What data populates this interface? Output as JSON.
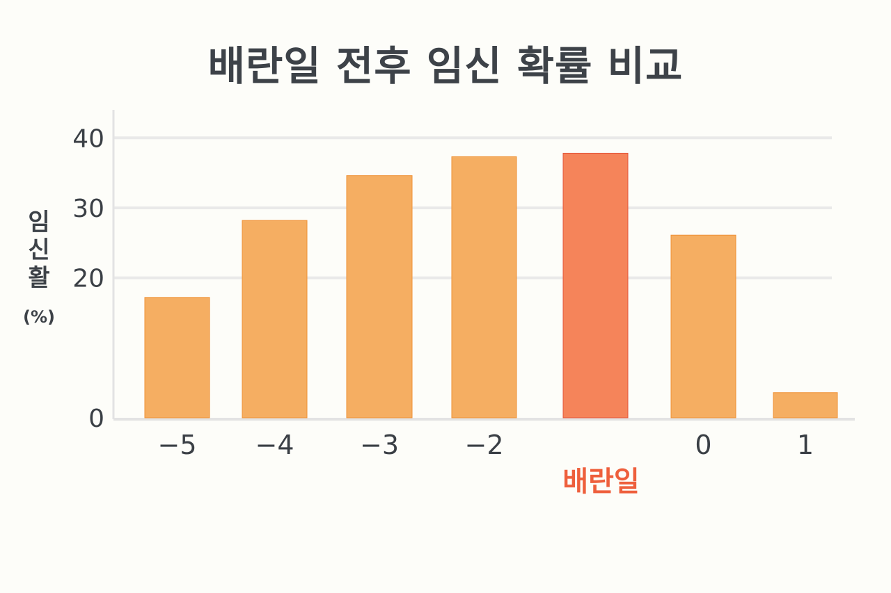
{
  "chart_data": {
    "type": "bar",
    "title": "배란일 전후 임신 확률 비교",
    "ylabel_chars": [
      "임",
      "신",
      "활"
    ],
    "ylabel_unit": "(%)",
    "categories": [
      "−5",
      "−4",
      "−3",
      "−2",
      "",
      "0",
      "1"
    ],
    "values": [
      17.2,
      28.2,
      34.6,
      37.3,
      37.8,
      26.1,
      3.6
    ],
    "highlight_index": 4,
    "highlight_label": "배란일",
    "ylim": [
      0,
      44
    ],
    "yticks": [
      0,
      20,
      30,
      40
    ],
    "grid": true,
    "colors": {
      "bar": "#f5ae62",
      "bar_stroke": "#ef9135",
      "highlight": "#f5845a",
      "highlight_stroke": "#e4553a",
      "highlight_text": "#ee5f3c",
      "grid": "#e9e9e9",
      "axis": "#e3e3e3"
    }
  }
}
